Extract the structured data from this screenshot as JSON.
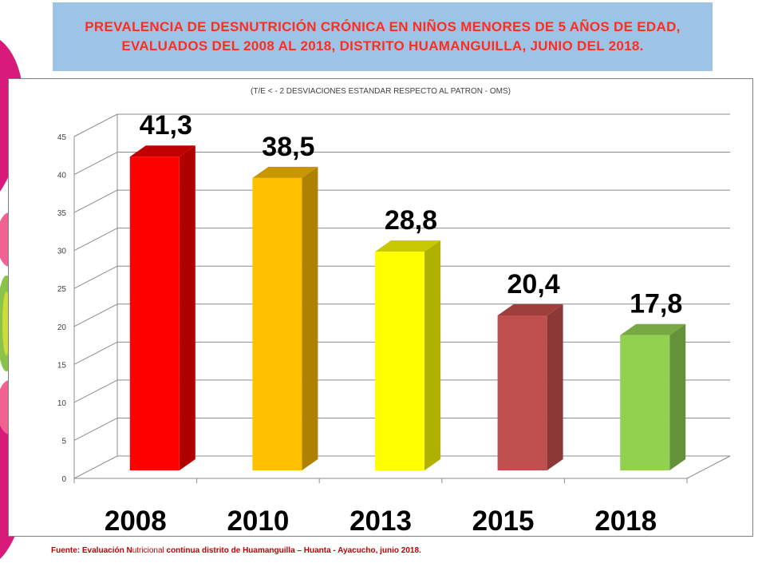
{
  "title": "PREVALENCIA DE DESNUTRICIÓN CRÓNICA EN NIÑOS MENORES DE 5 AÑOS DE EDAD,  EVALUADOS DEL 2008 AL 2018, DISTRITO HUAMANGUILLA, JUNIO DEL 2018.",
  "source": {
    "prefix": "Fuente: Evaluación ",
    "nutri_cap": "N",
    "nutri_rest": "utricional",
    "suffix": " continua distrito de Huamanguilla – Huanta - Ayacucho, junio 2018."
  },
  "chart_data": {
    "type": "bar",
    "title": "(T/E < - 2 DESVIACIONES ESTANDAR RESPECTO  AL PATRON - OMS)",
    "categories": [
      "2008",
      "2010",
      "2013",
      "2015",
      "2018"
    ],
    "values": [
      41.3,
      38.5,
      28.8,
      20.4,
      17.8
    ],
    "value_labels": [
      "41,3",
      "38,5",
      "28,8",
      "20,4",
      "17,8"
    ],
    "ylim": [
      0,
      45
    ],
    "yticks": [
      0,
      5,
      10,
      15,
      20,
      25,
      30,
      35,
      40,
      45
    ],
    "grid": true,
    "colors": [
      "#ff0000",
      "#ffc000",
      "#ffff00",
      "#c0504d",
      "#92d050"
    ],
    "side_colors": [
      "#b00000",
      "#b08000",
      "#b0b000",
      "#8c3836",
      "#64923a"
    ],
    "top_colors": [
      "#c00000",
      "#c89600",
      "#c8c800",
      "#9e3f3c",
      "#76a844"
    ]
  }
}
